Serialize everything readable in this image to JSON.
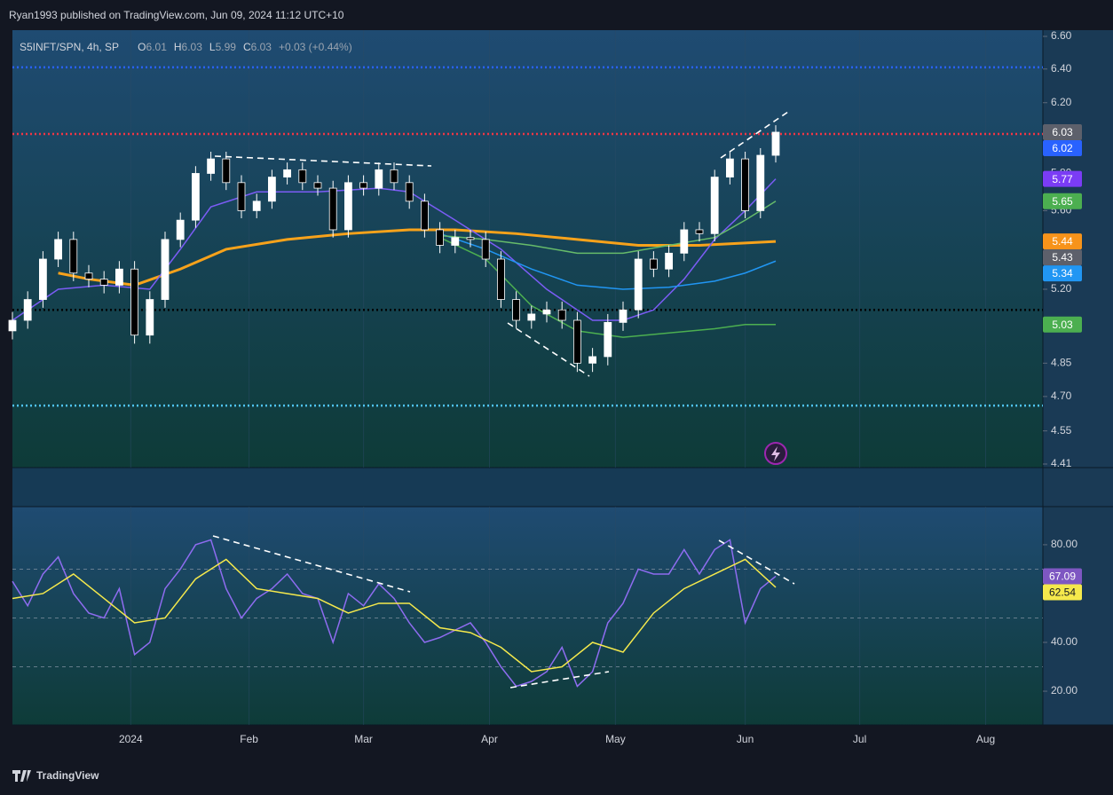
{
  "header": {
    "publisher": "Ryan1993 published on TradingView.com, Jun 09, 2024 11:12 UTC+10",
    "brand": "TradingView"
  },
  "chart_data": [
    {
      "type": "candlestick",
      "title": "S5INFT/SPN, 4h, SP",
      "ohlc": [
        {
          "label": "O",
          "value": 6.01
        },
        {
          "label": "H",
          "value": 6.03
        },
        {
          "label": "L",
          "value": 5.99
        },
        {
          "label": "C",
          "value": 6.03
        }
      ],
      "change": "+0.03 (+0.44%)",
      "log_scale": true,
      "xlim": [
        0,
        270
      ],
      "ylim": [
        4.41,
        6.6
      ],
      "yticks": [
        {
          "value": 6.6,
          "label": "6.60"
        },
        {
          "value": 6.4,
          "label": "6.40"
        },
        {
          "value": 6.2,
          "label": "6.20"
        },
        {
          "value": 5.8,
          "label": "5.80"
        },
        {
          "value": 5.6,
          "label": "5.60"
        },
        {
          "value": 5.2,
          "label": "5.20"
        },
        {
          "value": 4.85,
          "label": "4.85"
        },
        {
          "value": 4.7,
          "label": "4.70"
        },
        {
          "value": 4.55,
          "label": "4.55"
        },
        {
          "value": 4.41,
          "label": "4.41"
        }
      ],
      "x": [
        0,
        4,
        8,
        12,
        16,
        20,
        24,
        28,
        32,
        36,
        40,
        44,
        48,
        52,
        56,
        60,
        64,
        68,
        72,
        76,
        80,
        84,
        88,
        92,
        96,
        100,
        104,
        108,
        112,
        116,
        120,
        124,
        128,
        132,
        136,
        140,
        144,
        148,
        152,
        156,
        160,
        164,
        168,
        172,
        176,
        180,
        184,
        188,
        192,
        196,
        200
      ],
      "open": [
        5.0,
        5.05,
        5.15,
        5.35,
        5.45,
        5.28,
        5.25,
        5.22,
        5.3,
        4.98,
        5.15,
        5.45,
        5.55,
        5.8,
        5.88,
        5.75,
        5.6,
        5.65,
        5.78,
        5.82,
        5.75,
        5.72,
        5.5,
        5.75,
        5.72,
        5.82,
        5.75,
        5.65,
        5.5,
        5.42,
        5.46,
        5.45,
        5.35,
        5.15,
        5.05,
        5.08,
        5.1,
        5.05,
        4.85,
        4.88,
        5.04,
        5.1,
        5.35,
        5.3,
        5.38,
        5.5,
        5.48,
        5.78,
        5.88,
        5.6,
        5.9
      ],
      "high": [
        5.09,
        5.19,
        5.39,
        5.49,
        5.49,
        5.32,
        5.29,
        5.34,
        5.34,
        5.19,
        5.49,
        5.59,
        5.84,
        5.92,
        5.92,
        5.79,
        5.69,
        5.82,
        5.86,
        5.86,
        5.79,
        5.76,
        5.79,
        5.79,
        5.86,
        5.86,
        5.79,
        5.69,
        5.54,
        5.5,
        5.5,
        5.49,
        5.39,
        5.19,
        5.12,
        5.14,
        5.14,
        5.09,
        4.92,
        5.08,
        5.14,
        5.39,
        5.39,
        5.42,
        5.54,
        5.54,
        5.82,
        5.92,
        5.92,
        5.94,
        6.07
      ],
      "low": [
        4.96,
        5.01,
        5.11,
        5.31,
        5.24,
        5.21,
        5.18,
        5.18,
        4.94,
        4.94,
        5.11,
        5.41,
        5.51,
        5.76,
        5.71,
        5.56,
        5.56,
        5.61,
        5.74,
        5.71,
        5.68,
        5.46,
        5.46,
        5.68,
        5.68,
        5.71,
        5.61,
        5.46,
        5.38,
        5.38,
        5.41,
        5.31,
        5.11,
        5.01,
        5.01,
        5.04,
        5.01,
        4.81,
        4.81,
        4.84,
        5.0,
        5.06,
        5.26,
        5.26,
        5.34,
        5.44,
        5.44,
        5.74,
        5.56,
        5.56,
        5.86
      ],
      "close": [
        5.05,
        5.15,
        5.35,
        5.45,
        5.28,
        5.25,
        5.22,
        5.3,
        4.98,
        5.15,
        5.45,
        5.55,
        5.8,
        5.88,
        5.75,
        5.6,
        5.65,
        5.78,
        5.82,
        5.75,
        5.72,
        5.5,
        5.75,
        5.72,
        5.82,
        5.75,
        5.65,
        5.5,
        5.42,
        5.46,
        5.45,
        5.35,
        5.15,
        5.05,
        5.08,
        5.1,
        5.05,
        4.85,
        4.88,
        5.04,
        5.1,
        5.35,
        5.3,
        5.38,
        5.5,
        5.48,
        5.78,
        5.88,
        5.6,
        5.9,
        6.03
      ],
      "up_color": "#ffffff",
      "down_color": "#000000",
      "series": [
        {
          "color": "#f7a21b",
          "x": [
            12,
            20,
            32,
            44,
            56,
            72,
            88,
            104,
            116,
            132,
            148,
            164,
            180,
            200
          ],
          "values": [
            5.28,
            5.25,
            5.22,
            5.3,
            5.4,
            5.45,
            5.48,
            5.5,
            5.5,
            5.48,
            5.45,
            5.42,
            5.42,
            5.44
          ]
        },
        {
          "color": "#7b5cf5",
          "x": [
            0,
            12,
            24,
            36,
            44,
            52,
            64,
            80,
            96,
            104,
            116,
            128,
            140,
            152,
            160,
            168,
            176,
            184,
            192,
            200
          ],
          "values": [
            5.05,
            5.2,
            5.22,
            5.2,
            5.4,
            5.62,
            5.7,
            5.7,
            5.72,
            5.7,
            5.55,
            5.4,
            5.2,
            5.05,
            5.05,
            5.1,
            5.25,
            5.45,
            5.6,
            5.77
          ]
        },
        {
          "color": "#2196f3",
          "x": [
            112,
            124,
            136,
            148,
            160,
            172,
            184,
            192,
            200
          ],
          "values": [
            5.48,
            5.4,
            5.3,
            5.22,
            5.2,
            5.21,
            5.24,
            5.28,
            5.34
          ]
        },
        {
          "color": "#4caf50",
          "x": [
            112,
            124,
            136,
            148,
            160,
            172,
            184,
            192,
            200
          ],
          "values": [
            5.46,
            5.35,
            5.12,
            5.0,
            4.97,
            4.99,
            5.01,
            5.03,
            5.03
          ]
        },
        {
          "color": "#66bb6a",
          "x": [
            112,
            124,
            136,
            148,
            160,
            172,
            184,
            192,
            200
          ],
          "values": [
            5.47,
            5.45,
            5.42,
            5.38,
            5.38,
            5.42,
            5.46,
            5.55,
            5.65
          ]
        }
      ],
      "hlines": [
        {
          "value": 6.41,
          "color": "#2962ff"
        },
        {
          "value": 6.02,
          "color": "#f23645"
        },
        {
          "value": 5.1,
          "color": "#000000"
        },
        {
          "value": 4.66,
          "color": "#4fc3f7"
        }
      ],
      "price_labels": [
        {
          "value": 6.03,
          "color": "#5d606b"
        },
        {
          "value": 6.02,
          "color": "#2962ff"
        },
        {
          "value": 5.77,
          "color": "#7b3cf5"
        },
        {
          "value": 5.65,
          "color": "#4caf50"
        },
        {
          "value": 5.44,
          "color": "#f7931a"
        },
        {
          "value": 5.43,
          "color": "#5d606b"
        },
        {
          "value": 5.34,
          "color": "#2196f3"
        },
        {
          "value": 5.03,
          "color": "#4caf50"
        }
      ]
    },
    {
      "type": "line",
      "xlim": [
        0,
        270
      ],
      "ylim": [
        6.2,
        95.6
      ],
      "yticks": [
        {
          "value": 80,
          "label": "80.00"
        },
        {
          "value": 40,
          "label": "40.00"
        },
        {
          "value": 20,
          "label": "20.00"
        }
      ],
      "bands": [
        70,
        50,
        30
      ],
      "xticks": [
        {
          "value": 31,
          "label": "2024"
        },
        {
          "value": 62,
          "label": "Feb"
        },
        {
          "value": 92,
          "label": "Mar"
        },
        {
          "value": 125,
          "label": "Apr"
        },
        {
          "value": 158,
          "label": "May"
        },
        {
          "value": 192,
          "label": "Jun"
        },
        {
          "value": 222,
          "label": "Jul"
        },
        {
          "value": 255,
          "label": "Aug"
        }
      ],
      "series": [
        {
          "color": "#8e6cf0",
          "x": [
            0,
            4,
            8,
            12,
            16,
            20,
            24,
            28,
            32,
            36,
            40,
            44,
            48,
            52,
            56,
            60,
            64,
            68,
            72,
            76,
            80,
            84,
            88,
            92,
            96,
            100,
            104,
            108,
            112,
            116,
            120,
            124,
            128,
            132,
            136,
            140,
            144,
            148,
            152,
            156,
            160,
            164,
            168,
            172,
            176,
            180,
            184,
            188,
            192,
            196,
            200
          ],
          "values": [
            65,
            55,
            68,
            75,
            60,
            52,
            50,
            62,
            35,
            40,
            62,
            70,
            80,
            82,
            62,
            50,
            58,
            62,
            68,
            60,
            58,
            40,
            60,
            55,
            64,
            58,
            48,
            40,
            42,
            45,
            48,
            40,
            30,
            22,
            24,
            28,
            38,
            22,
            28,
            48,
            56,
            70,
            68,
            68,
            78,
            68,
            78,
            82,
            48,
            62,
            67.09
          ]
        },
        {
          "color": "#f5e94c",
          "x": [
            0,
            8,
            16,
            24,
            32,
            40,
            48,
            56,
            64,
            72,
            80,
            88,
            96,
            104,
            112,
            120,
            128,
            136,
            144,
            152,
            160,
            168,
            176,
            184,
            192,
            200
          ],
          "values": [
            58,
            60,
            68,
            58,
            48,
            50,
            66,
            74,
            62,
            60,
            58,
            52,
            56,
            56,
            46,
            44,
            38,
            28,
            30,
            40,
            36,
            52,
            62,
            68,
            74,
            62.54
          ]
        }
      ],
      "price_labels": [
        {
          "value": 67.09,
          "color": "#7e57c2"
        },
        {
          "value": 62.54,
          "color": "#f5e94c"
        }
      ]
    }
  ]
}
